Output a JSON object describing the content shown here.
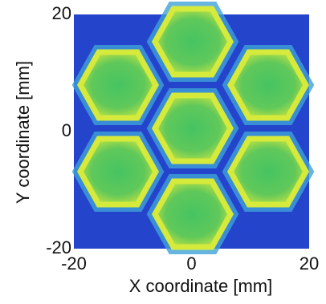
{
  "chart_data": {
    "type": "image",
    "x_label": "X coordinate [mm]",
    "y_label": "Y coordinate [mm]",
    "xlim": [
      -20,
      20
    ],
    "ylim": [
      -20,
      20
    ],
    "xticks": [
      -20,
      0,
      20
    ],
    "yticks": [
      -20,
      0,
      20
    ]
  }
}
